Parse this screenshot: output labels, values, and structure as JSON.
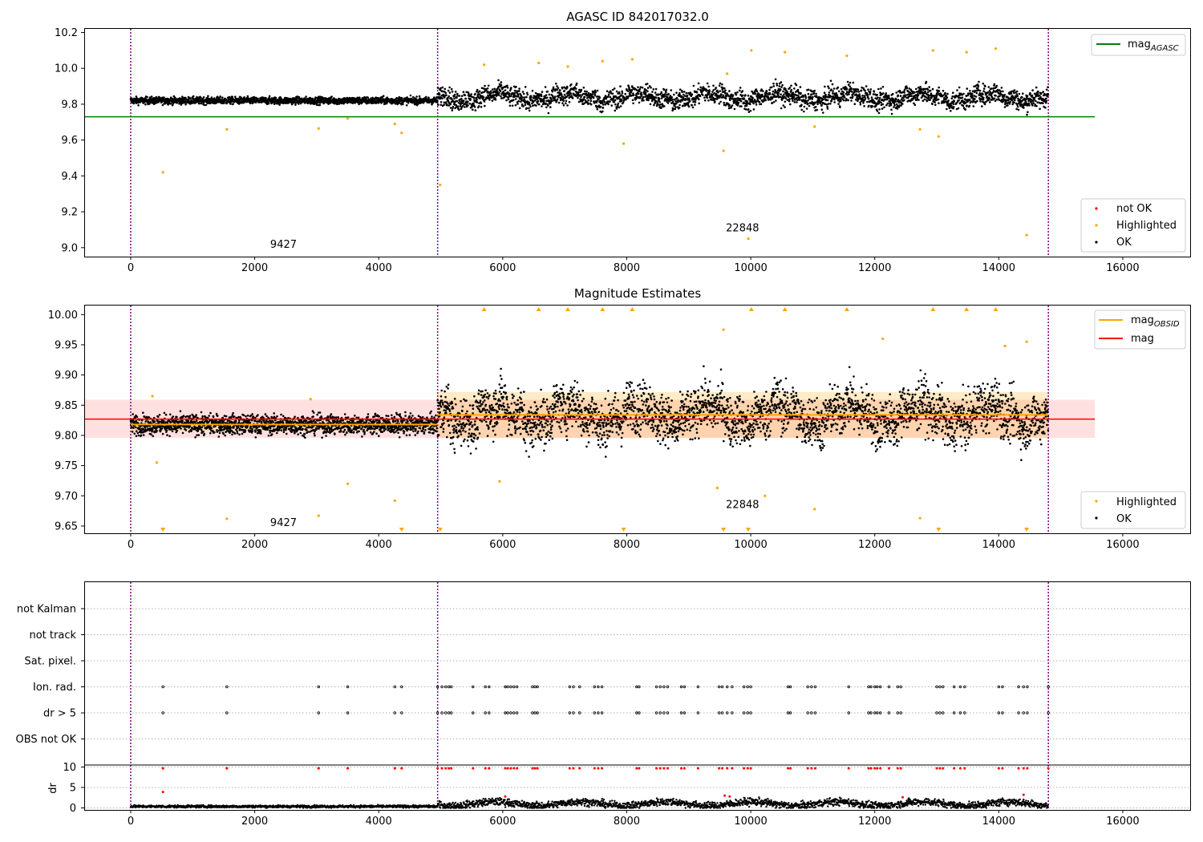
{
  "chart_data": [
    {
      "type": "scatter",
      "title": "AGASC ID 842017032.0",
      "xlim": [
        -750,
        17100
      ],
      "ylim": [
        8.95,
        10.22
      ],
      "xticks": [
        0,
        2000,
        4000,
        6000,
        8000,
        10000,
        12000,
        14000,
        16000
      ],
      "yticks": [
        9.0,
        9.2,
        9.4,
        9.6,
        9.8,
        10.0,
        10.2
      ],
      "ytick_labels": [
        "9.0",
        "9.2",
        "9.4",
        "9.6",
        "9.8",
        "10.0",
        "10.2"
      ],
      "obsid_boundaries": [
        0,
        4950,
        14800
      ],
      "annotations": [
        {
          "text": "9427",
          "x": 2250,
          "y": 9.0
        },
        {
          "text": "22848",
          "x": 9600,
          "y": 9.09
        }
      ],
      "mag_agasc": {
        "value": 9.73,
        "x_range": [
          -750,
          15550
        ],
        "color": "#008000"
      },
      "legend_top": [
        {
          "label": "mag",
          "sub": "AGASC",
          "color": "#008000"
        }
      ],
      "legend_bottom": [
        {
          "label": "not OK",
          "color": "#ff0000"
        },
        {
          "label": "Highlighted",
          "color": "#ffa500"
        },
        {
          "label": "OK",
          "color": "#000000"
        }
      ],
      "series": [
        {
          "name": "OK",
          "segments": [
            {
              "x_range": [
                0,
                4950
              ],
              "center": 9.82,
              "spread": 0.022
            },
            {
              "x_range": [
                4950,
                14800
              ],
              "center": 9.84,
              "spread": 0.06
            }
          ]
        },
        {
          "name": "Highlighted",
          "points": [
            [
              520,
              9.42
            ],
            [
              1550,
              9.66
            ],
            [
              3030,
              9.665
            ],
            [
              3500,
              9.72
            ],
            [
              4260,
              9.69
            ],
            [
              4370,
              9.64
            ],
            [
              4990,
              9.35
            ],
            [
              5700,
              10.02
            ],
            [
              6580,
              10.03
            ],
            [
              7050,
              10.01
            ],
            [
              7610,
              10.04
            ],
            [
              8090,
              10.05
            ],
            [
              7950,
              9.58
            ],
            [
              9560,
              9.54
            ],
            [
              9620,
              9.97
            ],
            [
              10010,
              10.1
            ],
            [
              10550,
              10.09
            ],
            [
              11550,
              10.07
            ],
            [
              12940,
              10.1
            ],
            [
              13480,
              10.09
            ],
            [
              13950,
              10.11
            ],
            [
              14450,
              9.07
            ],
            [
              13030,
              9.62
            ],
            [
              12730,
              9.66
            ],
            [
              11030,
              9.675
            ],
            [
              9960,
              9.05
            ]
          ]
        }
      ]
    },
    {
      "type": "scatter",
      "title": "Magnitude Estimates",
      "xlim": [
        -750,
        17100
      ],
      "ylim": [
        9.638,
        10.015
      ],
      "xticks": [
        0,
        2000,
        4000,
        6000,
        8000,
        10000,
        12000,
        14000,
        16000
      ],
      "yticks": [
        9.65,
        9.7,
        9.75,
        9.8,
        9.85,
        9.9,
        9.95,
        10.0
      ],
      "ytick_labels": [
        "9.65",
        "9.70",
        "9.75",
        "9.80",
        "9.85",
        "9.90",
        "9.95",
        "10.00"
      ],
      "obsid_boundaries": [
        0,
        4950,
        14800
      ],
      "annotations": [
        {
          "text": "9427",
          "x": 2250,
          "y": 9.65
        },
        {
          "text": "22848",
          "x": 9600,
          "y": 9.68
        }
      ],
      "mag": {
        "value": 9.827,
        "band": [
          9.796,
          9.859
        ],
        "x_range": [
          -750,
          15550
        ],
        "color": "#ff0000"
      },
      "mag_obsid": [
        {
          "x_range": [
            0,
            4950
          ],
          "value": 9.818,
          "band": [
            9.808,
            9.828
          ]
        },
        {
          "x_range": [
            4950,
            14800
          ],
          "value": 9.834,
          "band": [
            9.796,
            9.872
          ]
        }
      ],
      "legend_top": [
        {
          "label": "mag",
          "sub": "OBSID",
          "color": "#ffa500"
        },
        {
          "label": "mag",
          "sub": "",
          "color": "#ff0000"
        }
      ],
      "legend_bottom": [
        {
          "label": "Highlighted",
          "color": "#ffa500"
        },
        {
          "label": "OK",
          "color": "#000000"
        }
      ],
      "series": [
        {
          "name": "OK",
          "segments": [
            {
              "x_range": [
                0,
                4950
              ],
              "center": 9.818,
              "spread": 0.018
            },
            {
              "x_range": [
                4950,
                14800
              ],
              "center": 9.835,
              "spread": 0.045
            }
          ]
        },
        {
          "name": "Highlighted",
          "points": [
            [
              420,
              9.755
            ],
            [
              1550,
              9.662
            ],
            [
              3030,
              9.667
            ],
            [
              3500,
              9.72
            ],
            [
              4260,
              9.692
            ],
            [
              9460,
              9.713
            ],
            [
              9560,
              9.975
            ],
            [
              10230,
              9.7
            ],
            [
              11030,
              9.678
            ],
            [
              12730,
              9.663
            ],
            [
              12130,
              9.96
            ],
            [
              14450,
              9.955
            ],
            [
              14100,
              9.948
            ],
            [
              350,
              9.865
            ],
            [
              2900,
              9.86
            ],
            [
              5950,
              9.724
            ]
          ]
        },
        {
          "name": "Highlighted (clipped above)",
          "x": [
            5700,
            6580,
            7050,
            7610,
            8090,
            10010,
            10550,
            11550,
            12940,
            13480,
            13950
          ]
        },
        {
          "name": "Highlighted (clipped below)",
          "x": [
            520,
            4370,
            4990,
            7950,
            9560,
            9960,
            13030,
            14450
          ]
        }
      ]
    },
    {
      "type": "scatter",
      "title": "",
      "xlim": [
        -750,
        17100
      ],
      "xticks": [
        0,
        2000,
        4000,
        6000,
        8000,
        10000,
        12000,
        14000,
        16000
      ],
      "obsid_boundaries": [
        0,
        4950,
        14800
      ],
      "flag_rows": [
        "not Kalman",
        "not track",
        "Sat. pixel.",
        "Ion. rad.",
        "dr > 5",
        "OBS not OK"
      ],
      "flag_points": {
        "Ion. rad.": [
          520,
          1550,
          3030,
          3500,
          4260,
          4370,
          4950,
          5020,
          5080,
          5130,
          5170,
          5520,
          5720,
          5780,
          6040,
          6080,
          6130,
          6180,
          6230,
          6480,
          6520,
          6560,
          7080,
          7140,
          7240,
          7480,
          7540,
          7600,
          8160,
          8200,
          8480,
          8540,
          8600,
          8660,
          8880,
          8930,
          9150,
          9490,
          9540,
          9620,
          9700,
          9890,
          9950,
          10000,
          10600,
          10640,
          10920,
          10980,
          11040,
          11580,
          11900,
          11940,
          12000,
          12040,
          12090,
          12230,
          12370,
          12420,
          13000,
          13050,
          13100,
          13280,
          13380,
          13450,
          14000,
          14060,
          14320,
          14400,
          14460,
          14800
        ],
        "dr > 5": [
          520,
          1550,
          3030,
          3500,
          4260,
          4370,
          4950,
          5020,
          5080,
          5130,
          5170,
          5520,
          5720,
          5780,
          6040,
          6080,
          6130,
          6180,
          6230,
          6480,
          6520,
          6560,
          7080,
          7140,
          7240,
          7480,
          7540,
          7600,
          8160,
          8200,
          8480,
          8540,
          8600,
          8660,
          8880,
          8930,
          9150,
          9490,
          9540,
          9620,
          9700,
          9890,
          9950,
          10000,
          10600,
          10640,
          10920,
          10980,
          11040,
          11580,
          11900,
          11940,
          12000,
          12040,
          12090,
          12230,
          12370,
          12420,
          13000,
          13050,
          13100,
          13280,
          13380,
          13450,
          14000,
          14060,
          14320,
          14400,
          14460,
          14800
        ]
      },
      "dr_ylim": [
        -0.5,
        10.5
      ],
      "dr_yticks": [
        0,
        5,
        10
      ],
      "ylabel": "dr",
      "dr_outliers": [
        [
          520,
          9.7
        ],
        [
          1550,
          9.7
        ],
        [
          3030,
          9.7
        ],
        [
          3500,
          9.7
        ],
        [
          4260,
          9.7
        ],
        [
          4370,
          9.7
        ],
        [
          520,
          3.9
        ],
        [
          6040,
          2.8
        ],
        [
          9580,
          3.0
        ],
        [
          9660,
          2.8
        ],
        [
          12450,
          2.6
        ],
        [
          14400,
          3.2
        ]
      ]
    }
  ]
}
